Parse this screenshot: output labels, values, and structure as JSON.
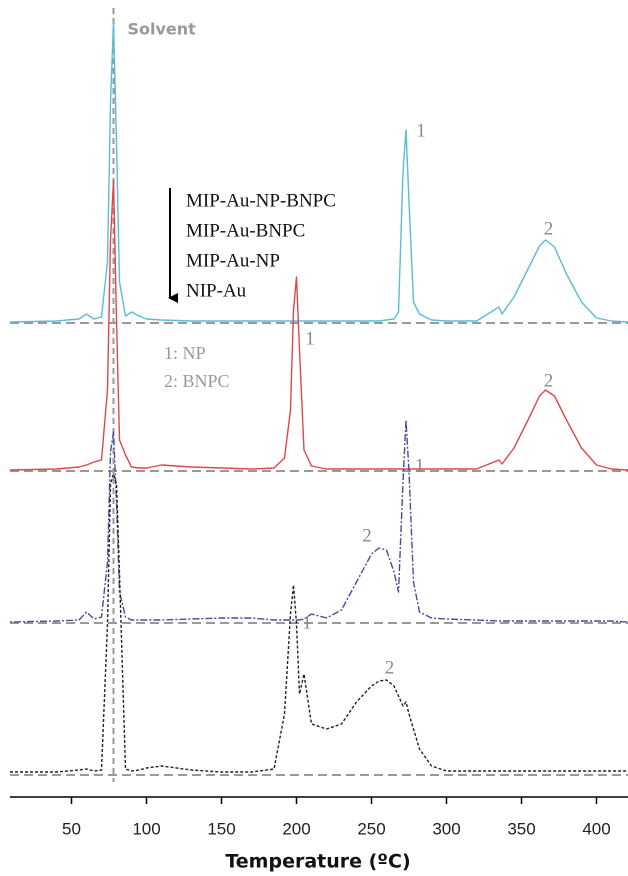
{
  "chart_data": {
    "type": "line",
    "x_label": "Temperature (ºC)",
    "xlim": [
      9,
      421
    ],
    "xticks": [
      50,
      100,
      150,
      200,
      250,
      300,
      350,
      400
    ],
    "ylim": [
      0,
      310
    ],
    "x": [
      9,
      40,
      55,
      60,
      65,
      70,
      74,
      76,
      78,
      80,
      82,
      86,
      90,
      95,
      100,
      110,
      130,
      150,
      170,
      185,
      192,
      196,
      198,
      200,
      202,
      205,
      210,
      220,
      230,
      240,
      250,
      255,
      260,
      265,
      268,
      271,
      273,
      275,
      278,
      282,
      290,
      300,
      320,
      335,
      337,
      345,
      355,
      362,
      366,
      372,
      380,
      390,
      400,
      410,
      421
    ],
    "series": [
      {
        "name": "MIP-Au-NP-BNPC",
        "color": "#5bbcd8",
        "dash": "none",
        "values": [
          0,
          1,
          3,
          8,
          3,
          5,
          60,
          220,
          300,
          180,
          40,
          6,
          10,
          6,
          3,
          2,
          1,
          1,
          1,
          1,
          1,
          1,
          1,
          1,
          1,
          1,
          1,
          1,
          1,
          1,
          1,
          1,
          2,
          3,
          10,
          150,
          192,
          120,
          20,
          8,
          2,
          1,
          1,
          15,
          8,
          25,
          55,
          76,
          82,
          75,
          48,
          20,
          4,
          1,
          0
        ],
        "peak_labels": [
          {
            "text": "1",
            "x": 283,
            "y": 190
          },
          {
            "text": "2",
            "x": 368,
            "y": 92
          }
        ]
      },
      {
        "name": "MIP-Au-BNPC",
        "color": "#e0474c",
        "dash": "none",
        "values": [
          0,
          1,
          3,
          5,
          8,
          10,
          80,
          230,
          290,
          150,
          30,
          15,
          3,
          2,
          2,
          5,
          3,
          2,
          1,
          2,
          12,
          60,
          160,
          193,
          120,
          20,
          4,
          1,
          1,
          1,
          1,
          1,
          1,
          1,
          1,
          1,
          1,
          1,
          1,
          1,
          1,
          1,
          1,
          10,
          6,
          22,
          52,
          74,
          80,
          74,
          50,
          22,
          5,
          1,
          0
        ],
        "peak_labels": [
          {
            "text": "1",
            "x": 209,
            "y": 130
          },
          {
            "text": "2",
            "x": 368,
            "y": 88
          }
        ]
      },
      {
        "name": "MIP-Au-NP",
        "color": "#4a4aa0",
        "dash": "2,2,7,2",
        "values": [
          0,
          1,
          2,
          10,
          3,
          5,
          60,
          170,
          190,
          120,
          30,
          5,
          2,
          2,
          2,
          2,
          3,
          4,
          4,
          2,
          2,
          2,
          2,
          2,
          2,
          3,
          8,
          4,
          12,
          40,
          68,
          74,
          72,
          50,
          30,
          140,
          202,
          150,
          40,
          10,
          4,
          3,
          2,
          1,
          1,
          1,
          1,
          1,
          1,
          1,
          1,
          1,
          1,
          1,
          0
        ],
        "peak_labels": [
          {
            "text": "1",
            "x": 282,
            "y": 155
          },
          {
            "text": "2",
            "x": 247,
            "y": 85
          }
        ]
      },
      {
        "name": "NIP-Au",
        "color": "#222222",
        "dash": "3,2",
        "values": [
          2,
          2,
          4,
          5,
          3,
          4,
          150,
          290,
          300,
          290,
          200,
          5,
          3,
          4,
          6,
          8,
          4,
          2,
          2,
          5,
          60,
          160,
          189,
          150,
          80,
          100,
          50,
          45,
          50,
          72,
          88,
          93,
          94,
          88,
          78,
          68,
          72,
          60,
          45,
          25,
          8,
          3,
          3,
          3,
          3,
          3,
          3,
          3,
          3,
          3,
          3,
          3,
          3,
          3,
          3
        ],
        "peak_labels": [
          {
            "text": "1",
            "x": 207,
            "y": 150
          },
          {
            "text": "2",
            "x": 262,
            "y": 105
          }
        ]
      }
    ],
    "annotation": {
      "text": "Solvent",
      "x": 78
    },
    "notes": [
      "1: NP",
      "2: BNPC"
    ]
  }
}
